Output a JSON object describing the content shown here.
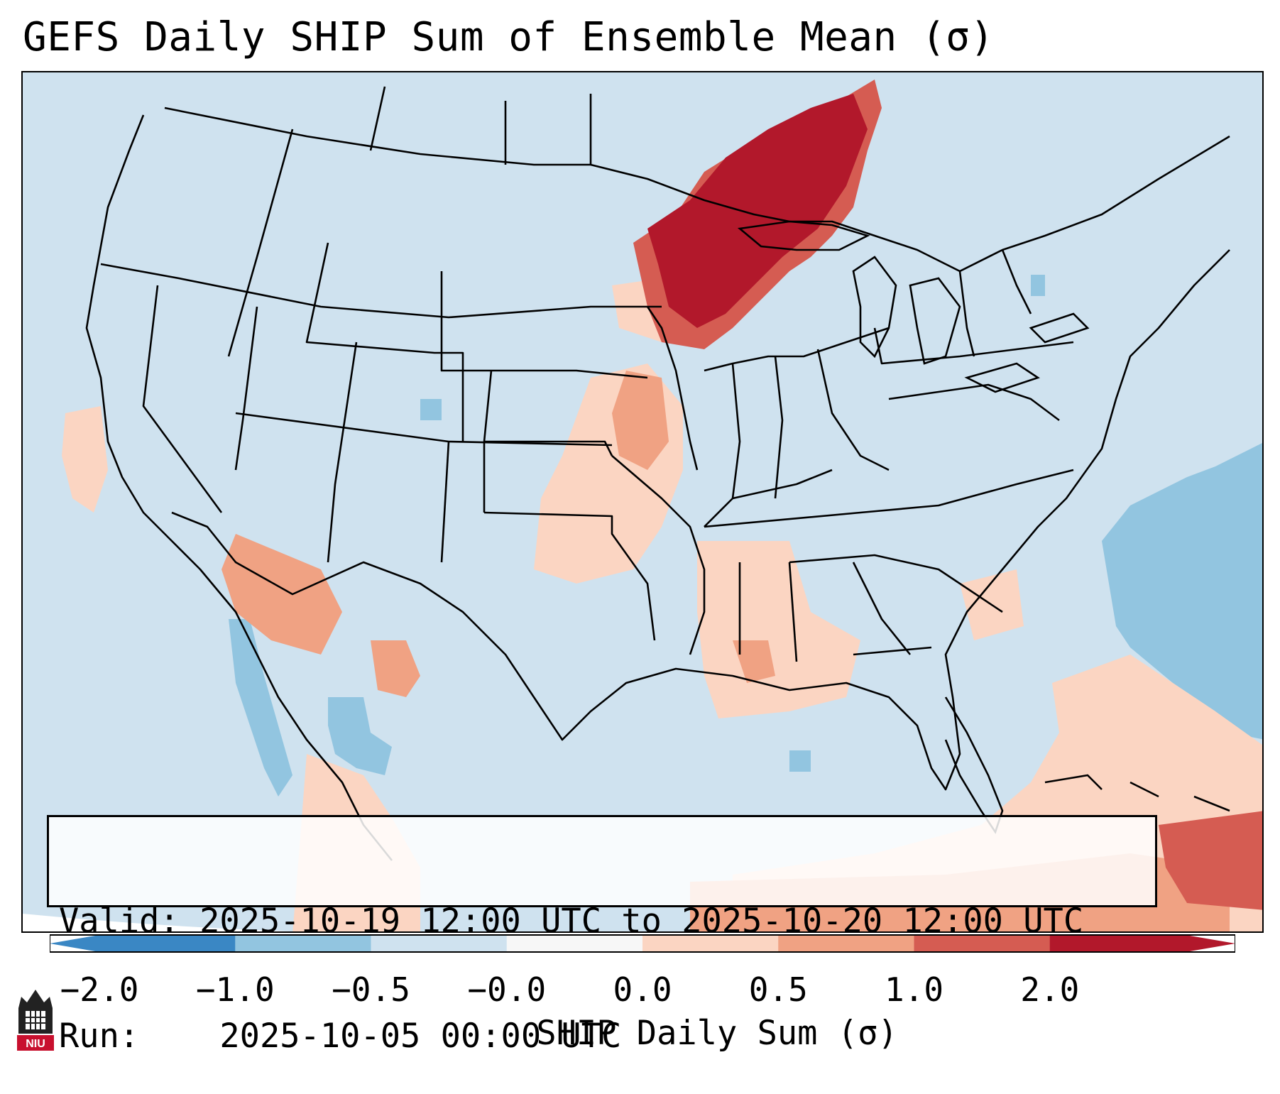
{
  "title": "GEFS Daily SHIP Sum of Ensemble Mean (σ)",
  "info": {
    "valid_label": "Valid:",
    "valid_value": "2025-10-19 12:00 UTC to 2025-10-20 12:00 UTC",
    "run_label": "Run:",
    "run_value": "2025-10-05 00:00 UTC"
  },
  "colorbar": {
    "label": "SHIP Daily Sum (σ)",
    "ticks": [
      "−2.0",
      "−1.0",
      "−0.5",
      "−0.0",
      "0.0",
      "0.5",
      "1.0",
      "2.0"
    ],
    "colors": [
      "#3a87c4",
      "#92c5e0",
      "#cfe2ef",
      "#f7f7f7",
      "#fbd5c2",
      "#f0a283",
      "#d55c52",
      "#b2182b"
    ]
  },
  "logo": {
    "text": "NIU",
    "color": "#c8102e"
  },
  "regions": {
    "high_positive": "Upper Midwest / Minnesota / Lake Superior",
    "negative": "Western Atlantic offshore"
  }
}
